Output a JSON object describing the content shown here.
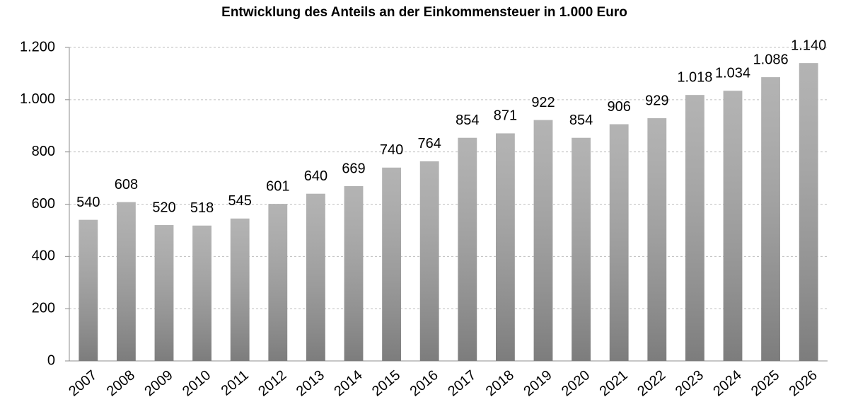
{
  "chart_data": {
    "type": "bar",
    "title": "Entwicklung des Anteils an der Einkommensteuer in 1.000 Euro",
    "categories": [
      "2007",
      "2008",
      "2009",
      "2010",
      "2011",
      "2012",
      "2013",
      "2014",
      "2015",
      "2016",
      "2017",
      "2018",
      "2019",
      "2020",
      "2021",
      "2022",
      "2023",
      "2024",
      "2025",
      "2026"
    ],
    "values": [
      540,
      608,
      520,
      518,
      545,
      601,
      640,
      669,
      740,
      764,
      854,
      871,
      922,
      854,
      906,
      929,
      1018,
      1034,
      1086,
      1140
    ],
    "value_labels": [
      "540",
      "608",
      "520",
      "518",
      "545",
      "601",
      "640",
      "669",
      "740",
      "764",
      "854",
      "871",
      "922",
      "854",
      "906",
      "929",
      "1.018",
      "1.034",
      "1.086",
      "1.140"
    ],
    "color": "#a6a6a6",
    "ylim": [
      0,
      1200
    ],
    "yticks": [
      0,
      200,
      400,
      600,
      800,
      {
        "value": 1000,
        "label": "1.000"
      },
      {
        "value": 1200,
        "label": "1.200"
      }
    ],
    "grid": true
  }
}
